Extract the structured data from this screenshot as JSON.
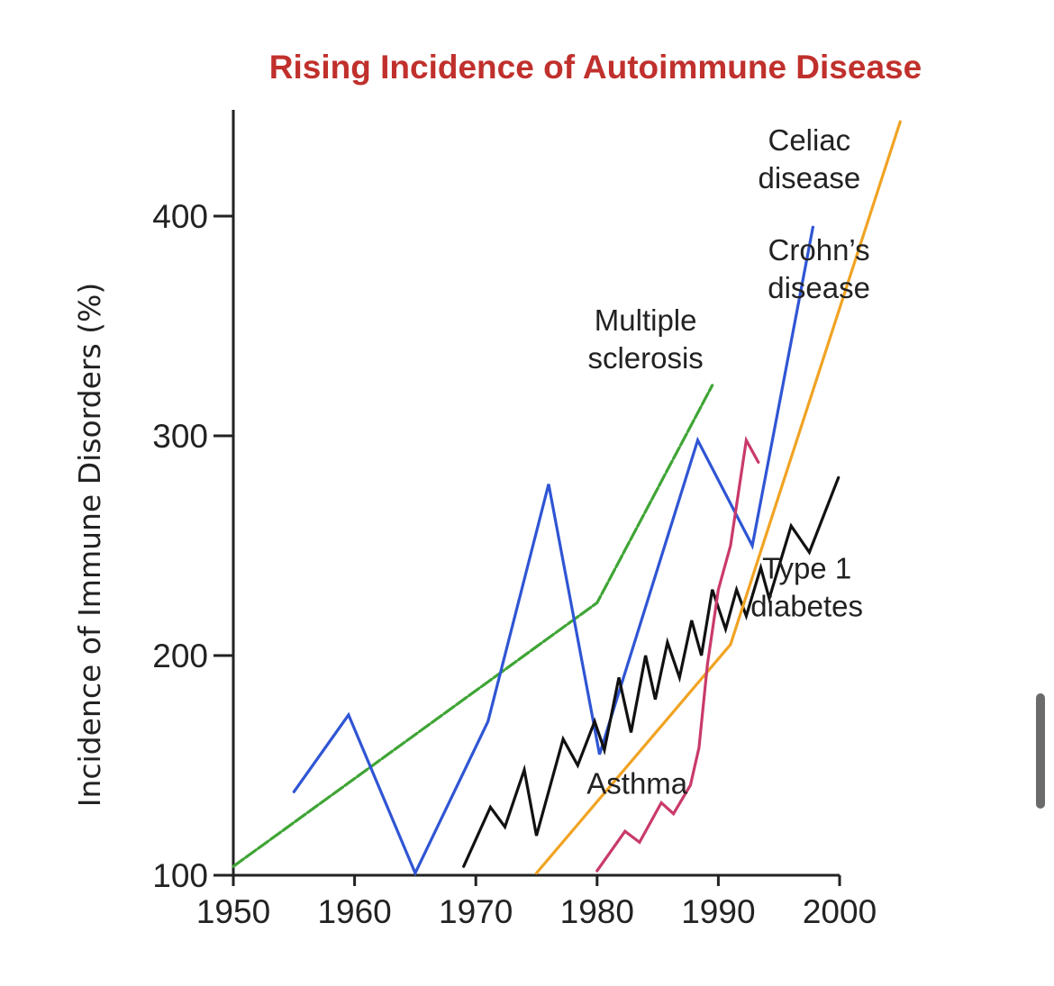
{
  "chart_data": {
    "type": "line",
    "title": "Rising Incidence of Autoimmune Disease",
    "ylabel": "Incidence of Immune Disorders (%)",
    "xlabel": "",
    "xlim": [
      1950,
      2000
    ],
    "ylim": [
      100,
      450
    ],
    "x_ticks": [
      1950,
      1960,
      1970,
      1980,
      1990,
      2000
    ],
    "x_tick_labels": [
      "1950",
      "1960",
      "1970",
      "1980",
      "1990",
      "2000"
    ],
    "y_ticks": [
      100,
      200,
      300,
      400
    ],
    "y_tick_labels": [
      "100",
      "200",
      "300",
      "400"
    ],
    "grid": false,
    "legend": "inline labels next to each line",
    "series": [
      {
        "key": "multiple-sclerosis",
        "name_lines": [
          "Multiple",
          "sclerosis"
        ],
        "color": "#3fa535",
        "points": [
          [
            1950,
            104
          ],
          [
            1980,
            224
          ],
          [
            1989.5,
            323
          ]
        ],
        "label_anchor": [
          1984,
          348
        ]
      },
      {
        "key": "crohns-disease",
        "name_lines": [
          "Crohn’s",
          "disease"
        ],
        "color": "#2f55d4",
        "points": [
          [
            1955,
            138
          ],
          [
            1959.5,
            173
          ],
          [
            1965,
            101
          ],
          [
            1971,
            170
          ],
          [
            1976,
            278
          ],
          [
            1980.2,
            155
          ],
          [
            1988.3,
            298
          ],
          [
            1992.8,
            250
          ],
          [
            1997.8,
            395
          ]
        ],
        "label_anchor": [
          1998.3,
          380
        ]
      },
      {
        "key": "type-1-diabetes",
        "name_lines": [
          "Type 1",
          "diabetes"
        ],
        "color": "#111111",
        "points": [
          [
            1969,
            104
          ],
          [
            1971.2,
            131
          ],
          [
            1972.4,
            122
          ],
          [
            1974,
            148
          ],
          [
            1975,
            118
          ],
          [
            1977.2,
            162
          ],
          [
            1978.4,
            150
          ],
          [
            1979.8,
            170
          ],
          [
            1980.6,
            157
          ],
          [
            1981.8,
            190
          ],
          [
            1982.8,
            165
          ],
          [
            1984,
            200
          ],
          [
            1984.8,
            180
          ],
          [
            1985.8,
            206
          ],
          [
            1986.8,
            190
          ],
          [
            1987.8,
            216
          ],
          [
            1988.6,
            200
          ],
          [
            1989.5,
            230
          ],
          [
            1990.6,
            212
          ],
          [
            1991.5,
            230
          ],
          [
            1992.3,
            218
          ],
          [
            1993.5,
            240
          ],
          [
            1994.2,
            226
          ],
          [
            1996,
            259
          ],
          [
            1997.5,
            247
          ],
          [
            1999.9,
            281
          ]
        ],
        "label_anchor": [
          1997.3,
          235
        ]
      },
      {
        "key": "celiac-disease",
        "name_lines": [
          "Celiac",
          "disease"
        ],
        "color": "#f0a323",
        "points": [
          [
            1975,
            101
          ],
          [
            1991,
            205
          ],
          [
            2005,
            443
          ]
        ],
        "label_anchor": [
          1997.5,
          430
        ]
      },
      {
        "key": "asthma",
        "name_lines": [
          "Asthma"
        ],
        "color": "#c93a6a",
        "points": [
          [
            1980,
            102
          ],
          [
            1982.3,
            120
          ],
          [
            1983.5,
            115
          ],
          [
            1985.3,
            133
          ],
          [
            1986.3,
            128
          ],
          [
            1987.7,
            141
          ],
          [
            1988.4,
            158
          ],
          [
            1989.1,
            196
          ],
          [
            1990,
            230
          ],
          [
            1991,
            250
          ],
          [
            1992.3,
            298
          ],
          [
            1993.3,
            288
          ]
        ],
        "label_anchor": [
          1983.3,
          137
        ]
      }
    ]
  }
}
